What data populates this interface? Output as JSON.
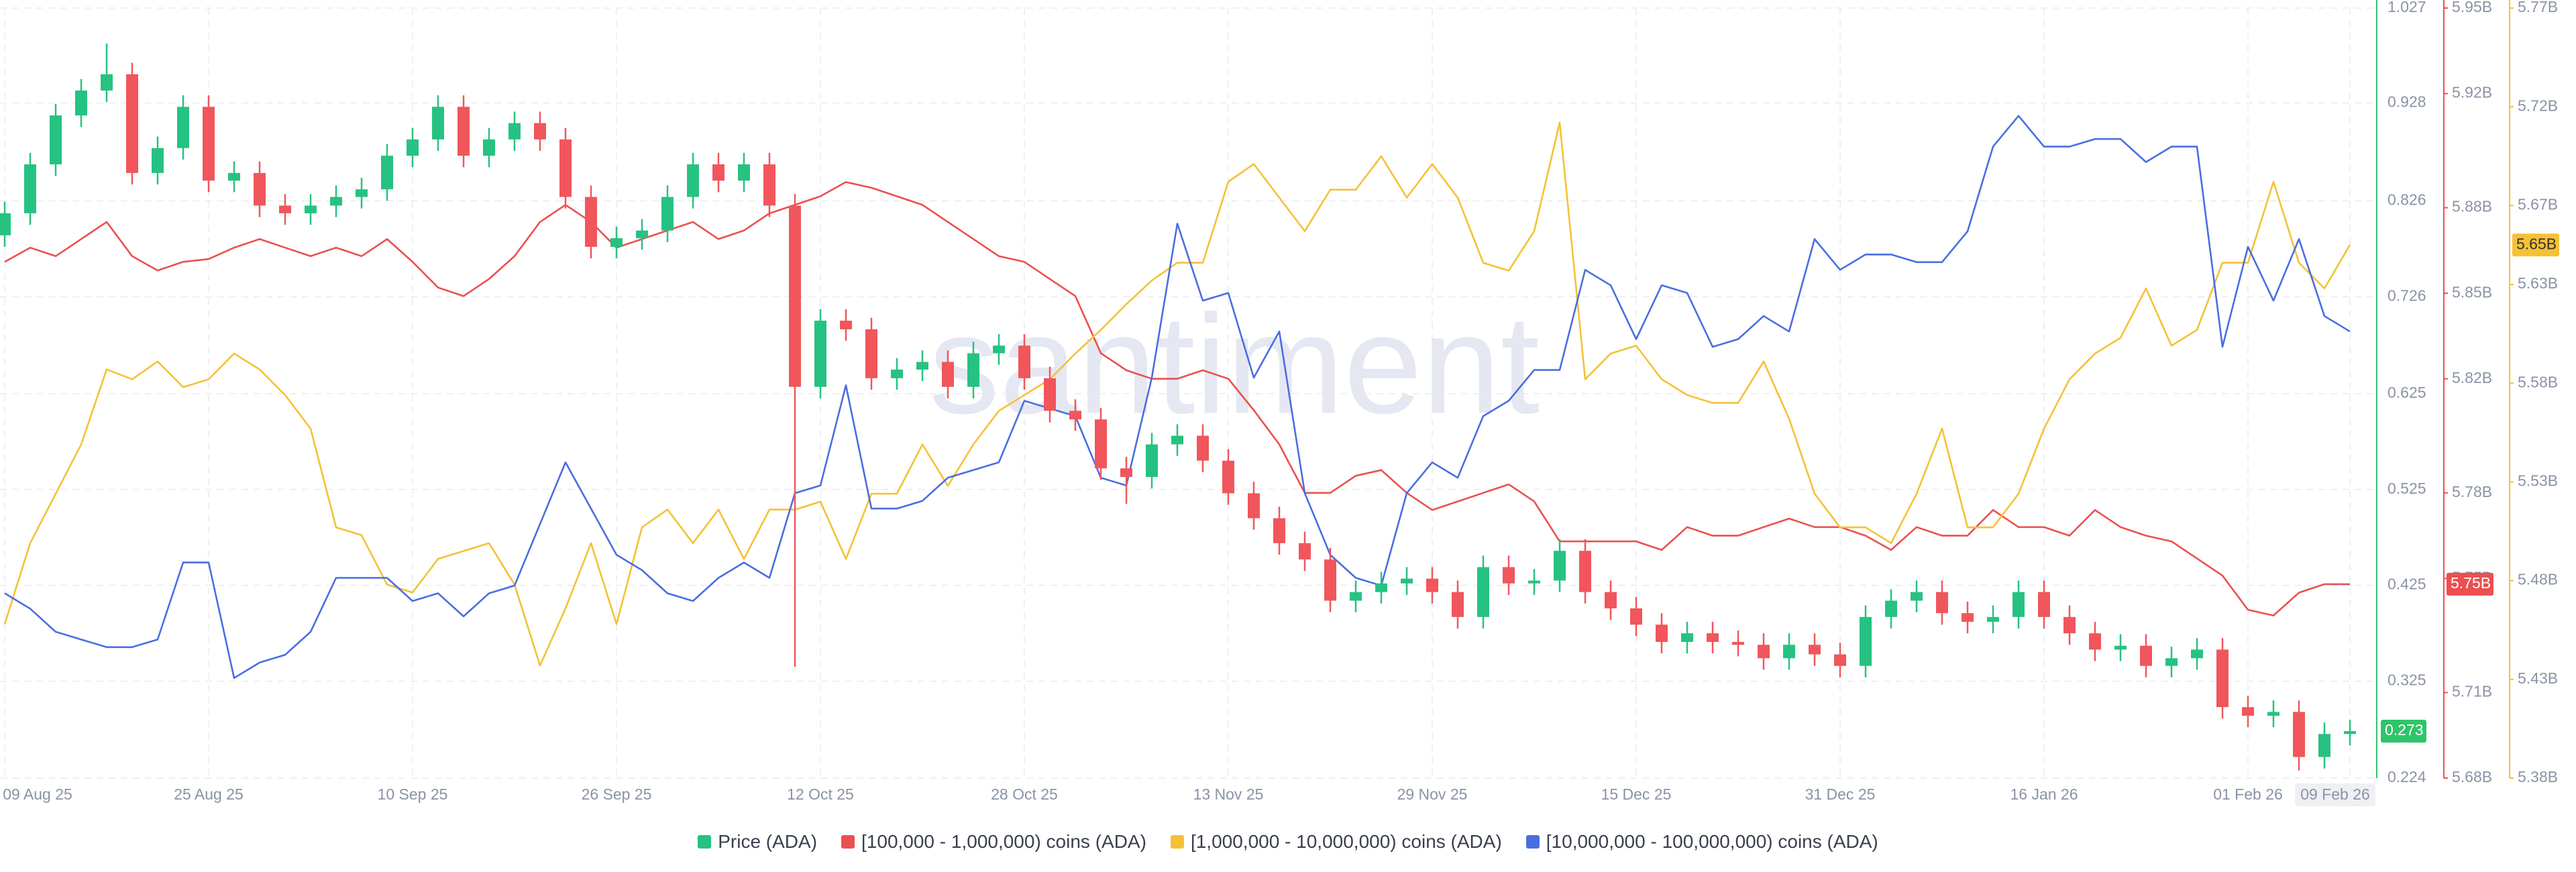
{
  "chart_data": {
    "type": "candlestick",
    "watermark": "santiment",
    "grid": true,
    "categories": [
      "09 Aug 25",
      null,
      null,
      null,
      null,
      null,
      null,
      null,
      "25 Aug 25",
      null,
      null,
      null,
      null,
      null,
      null,
      null,
      "10 Sep 25",
      null,
      null,
      null,
      null,
      null,
      null,
      null,
      "26 Sep 25",
      null,
      null,
      null,
      null,
      null,
      null,
      null,
      "12 Oct 25",
      null,
      null,
      null,
      null,
      null,
      null,
      null,
      "28 Oct 25",
      null,
      null,
      null,
      null,
      null,
      null,
      null,
      "13 Nov 25",
      null,
      null,
      null,
      null,
      null,
      null,
      null,
      "29 Nov 25",
      null,
      null,
      null,
      null,
      null,
      null,
      null,
      "15 Dec 25",
      null,
      null,
      null,
      null,
      null,
      null,
      null,
      "31 Dec 25",
      null,
      null,
      null,
      null,
      null,
      null,
      null,
      "16 Jan 26",
      null,
      null,
      null,
      null,
      null,
      null,
      null,
      "01 Feb 26",
      null,
      null,
      null,
      "09 Feb 26"
    ],
    "ylim": [
      0.224,
      1.027
    ],
    "yticks": [
      0.224,
      0.325,
      0.425,
      0.525,
      0.625,
      0.726,
      0.826,
      0.928,
      1.027
    ],
    "y2lim": [
      5.68,
      5.95
    ],
    "y2ticks": [
      {
        "value": 5.68,
        "label": "5.68B"
      },
      {
        "value": 5.71,
        "label": "5.71B"
      },
      {
        "value": 5.75,
        "label": "5.75B"
      },
      {
        "value": 5.78,
        "label": "5.78B"
      },
      {
        "value": 5.82,
        "label": "5.82B"
      },
      {
        "value": 5.85,
        "label": "5.85B"
      },
      {
        "value": 5.88,
        "label": "5.88B"
      },
      {
        "value": 5.92,
        "label": "5.92B"
      },
      {
        "value": 5.95,
        "label": "5.95B"
      }
    ],
    "y3lim": [
      5.38,
      5.77
    ],
    "y3ticks": [
      {
        "value": 5.38,
        "label": "5.38B"
      },
      {
        "value": 5.43,
        "label": "5.43B"
      },
      {
        "value": 5.48,
        "label": "5.48B"
      },
      {
        "value": 5.53,
        "label": "5.53B"
      },
      {
        "value": 5.58,
        "label": "5.58B"
      },
      {
        "value": 5.63,
        "label": "5.63B"
      },
      {
        "value": 5.67,
        "label": "5.67B"
      },
      {
        "value": 5.72,
        "label": "5.72B"
      },
      {
        "value": 5.77,
        "label": "5.77B"
      }
    ],
    "y4lim": [
      0,
      1
    ],
    "series": [
      {
        "name": "Price (ADA)",
        "type": "candlestick",
        "color": "#26c281",
        "up_color": "#26c281",
        "down_color": "#f0565b",
        "axis_color": "#2fc46a",
        "open": [
          0.79,
          0.813,
          0.864,
          0.915,
          0.941,
          0.958,
          0.855,
          0.881,
          0.924,
          0.847,
          0.855,
          0.821,
          0.813,
          0.821,
          0.83,
          0.838,
          0.873,
          0.89,
          0.924,
          0.873,
          0.89,
          0.907,
          0.89,
          0.83,
          0.778,
          0.787,
          0.795,
          0.83,
          0.864,
          0.847,
          0.864,
          0.821,
          0.632,
          0.701,
          0.692,
          0.641,
          0.65,
          0.658,
          0.632,
          0.667,
          0.675,
          0.641,
          0.607,
          0.598,
          0.547,
          0.538,
          0.572,
          0.581,
          0.555,
          0.521,
          0.495,
          0.469,
          0.452,
          0.409,
          0.418,
          0.427,
          0.432,
          0.418,
          0.392,
          0.444,
          0.427,
          0.43,
          0.461,
          0.418,
          0.401,
          0.384,
          0.366,
          0.375,
          0.366,
          0.363,
          0.349,
          0.363,
          0.353,
          0.341,
          0.392,
          0.409,
          0.418,
          0.396,
          0.387,
          0.392,
          0.418,
          0.392,
          0.375,
          0.358,
          0.362,
          0.341,
          0.349,
          0.358,
          0.298,
          0.289,
          0.293,
          0.246,
          0.27
        ],
        "high": [
          0.825,
          0.876,
          0.927,
          0.953,
          0.99,
          0.97,
          0.893,
          0.936,
          0.936,
          0.867,
          0.867,
          0.833,
          0.833,
          0.842,
          0.85,
          0.885,
          0.902,
          0.936,
          0.936,
          0.902,
          0.919,
          0.919,
          0.902,
          0.842,
          0.799,
          0.807,
          0.842,
          0.876,
          0.876,
          0.876,
          0.876,
          0.833,
          0.713,
          0.713,
          0.704,
          0.662,
          0.67,
          0.67,
          0.679,
          0.687,
          0.687,
          0.653,
          0.619,
          0.61,
          0.559,
          0.584,
          0.593,
          0.593,
          0.567,
          0.533,
          0.507,
          0.481,
          0.464,
          0.43,
          0.439,
          0.444,
          0.444,
          0.43,
          0.456,
          0.456,
          0.442,
          0.473,
          0.473,
          0.43,
          0.413,
          0.396,
          0.387,
          0.387,
          0.378,
          0.375,
          0.375,
          0.375,
          0.365,
          0.404,
          0.421,
          0.43,
          0.43,
          0.408,
          0.404,
          0.43,
          0.43,
          0.404,
          0.387,
          0.374,
          0.374,
          0.361,
          0.37,
          0.37,
          0.31,
          0.305,
          0.305,
          0.282,
          0.285
        ],
        "low": [
          0.778,
          0.801,
          0.852,
          0.903,
          0.929,
          0.843,
          0.843,
          0.869,
          0.835,
          0.835,
          0.809,
          0.801,
          0.801,
          0.809,
          0.818,
          0.826,
          0.861,
          0.878,
          0.861,
          0.861,
          0.878,
          0.878,
          0.818,
          0.766,
          0.766,
          0.775,
          0.783,
          0.818,
          0.835,
          0.835,
          0.809,
          0.34,
          0.62,
          0.68,
          0.629,
          0.629,
          0.638,
          0.62,
          0.62,
          0.655,
          0.629,
          0.595,
          0.586,
          0.535,
          0.51,
          0.526,
          0.56,
          0.543,
          0.509,
          0.483,
          0.457,
          0.44,
          0.397,
          0.397,
          0.406,
          0.415,
          0.406,
          0.38,
          0.38,
          0.415,
          0.415,
          0.418,
          0.406,
          0.389,
          0.372,
          0.354,
          0.354,
          0.354,
          0.351,
          0.337,
          0.337,
          0.341,
          0.329,
          0.329,
          0.38,
          0.397,
          0.384,
          0.375,
          0.375,
          0.38,
          0.38,
          0.363,
          0.346,
          0.346,
          0.329,
          0.329,
          0.337,
          0.286,
          0.277,
          0.277,
          0.232,
          0.234,
          0.258
        ],
        "close": [
          0.813,
          0.864,
          0.915,
          0.941,
          0.958,
          0.855,
          0.881,
          0.924,
          0.847,
          0.855,
          0.821,
          0.813,
          0.821,
          0.83,
          0.838,
          0.873,
          0.89,
          0.924,
          0.873,
          0.89,
          0.907,
          0.89,
          0.83,
          0.778,
          0.787,
          0.795,
          0.83,
          0.864,
          0.847,
          0.864,
          0.821,
          0.632,
          0.701,
          0.692,
          0.641,
          0.65,
          0.658,
          0.632,
          0.667,
          0.675,
          0.641,
          0.607,
          0.598,
          0.547,
          0.538,
          0.572,
          0.581,
          0.555,
          0.521,
          0.495,
          0.469,
          0.452,
          0.409,
          0.418,
          0.427,
          0.432,
          0.418,
          0.392,
          0.444,
          0.427,
          0.43,
          0.461,
          0.418,
          0.401,
          0.384,
          0.366,
          0.375,
          0.366,
          0.363,
          0.349,
          0.363,
          0.353,
          0.341,
          0.392,
          0.409,
          0.418,
          0.396,
          0.387,
          0.392,
          0.418,
          0.392,
          0.375,
          0.358,
          0.362,
          0.341,
          0.349,
          0.358,
          0.298,
          0.289,
          0.293,
          0.246,
          0.27,
          0.273
        ]
      },
      {
        "name": "[100,000  - 1,000,000) coins (ADA)",
        "type": "line",
        "axis": "y2",
        "color": "#ec4f4f",
        "last_value_label": "5.75B",
        "values": [
          5.861,
          5.866,
          5.863,
          5.869,
          5.875,
          5.863,
          5.858,
          5.861,
          5.862,
          5.866,
          5.869,
          5.866,
          5.863,
          5.866,
          5.863,
          5.869,
          5.861,
          5.852,
          5.849,
          5.855,
          5.863,
          5.875,
          5.881,
          5.875,
          5.866,
          5.869,
          5.872,
          5.875,
          5.869,
          5.872,
          5.878,
          5.881,
          5.884,
          5.889,
          5.887,
          5.884,
          5.881,
          5.875,
          5.869,
          5.863,
          5.861,
          5.855,
          5.849,
          5.829,
          5.823,
          5.82,
          5.82,
          5.823,
          5.82,
          5.809,
          5.797,
          5.78,
          5.78,
          5.786,
          5.788,
          5.78,
          5.774,
          5.777,
          5.78,
          5.783,
          5.777,
          5.763,
          5.763,
          5.763,
          5.763,
          5.76,
          5.768,
          5.765,
          5.765,
          5.768,
          5.771,
          5.768,
          5.768,
          5.765,
          5.76,
          5.768,
          5.765,
          5.765,
          5.774,
          5.768,
          5.768,
          5.765,
          5.774,
          5.768,
          5.765,
          5.763,
          5.757,
          5.751,
          5.739,
          5.737,
          5.745,
          5.748,
          5.748
        ]
      },
      {
        "name": "[1,000,000 - 10,000,000) coins (ADA)",
        "type": "line",
        "axis": "y3",
        "color": "#f5c136",
        "last_value_label": "5.65B",
        "values": [
          5.458,
          5.499,
          5.524,
          5.549,
          5.587,
          5.582,
          5.591,
          5.578,
          5.582,
          5.595,
          5.587,
          5.574,
          5.557,
          5.507,
          5.503,
          5.478,
          5.474,
          5.491,
          5.495,
          5.499,
          5.478,
          5.437,
          5.466,
          5.499,
          5.458,
          5.507,
          5.516,
          5.499,
          5.516,
          5.491,
          5.516,
          5.516,
          5.52,
          5.491,
          5.524,
          5.524,
          5.549,
          5.528,
          5.549,
          5.566,
          5.574,
          5.582,
          5.595,
          5.607,
          5.62,
          5.632,
          5.641,
          5.641,
          5.682,
          5.691,
          5.674,
          5.657,
          5.678,
          5.678,
          5.695,
          5.674,
          5.691,
          5.674,
          5.641,
          5.637,
          5.657,
          5.712,
          5.582,
          5.595,
          5.599,
          5.582,
          5.574,
          5.57,
          5.57,
          5.591,
          5.562,
          5.524,
          5.507,
          5.507,
          5.499,
          5.524,
          5.557,
          5.507,
          5.507,
          5.524,
          5.557,
          5.582,
          5.595,
          5.603,
          5.628,
          5.599,
          5.607,
          5.641,
          5.641,
          5.682,
          5.641,
          5.628,
          5.65
        ]
      },
      {
        "name": "[10,000,000 - 100,000,000) coins (ADA)",
        "type": "line",
        "axis": "y4",
        "color": "#4a6ee0",
        "values": [
          0.24,
          0.22,
          0.19,
          0.18,
          0.17,
          0.17,
          0.18,
          0.28,
          0.28,
          0.13,
          0.15,
          0.16,
          0.19,
          0.26,
          0.26,
          0.26,
          0.23,
          0.24,
          0.21,
          0.24,
          0.25,
          0.33,
          0.41,
          0.35,
          0.29,
          0.27,
          0.24,
          0.23,
          0.26,
          0.28,
          0.26,
          0.37,
          0.38,
          0.51,
          0.35,
          0.35,
          0.36,
          0.39,
          0.4,
          0.41,
          0.49,
          0.48,
          0.47,
          0.39,
          0.38,
          0.52,
          0.72,
          0.62,
          0.63,
          0.52,
          0.58,
          0.37,
          0.29,
          0.26,
          0.25,
          0.37,
          0.41,
          0.39,
          0.47,
          0.49,
          0.53,
          0.53,
          0.66,
          0.64,
          0.57,
          0.64,
          0.63,
          0.56,
          0.57,
          0.6,
          0.58,
          0.7,
          0.66,
          0.68,
          0.68,
          0.67,
          0.67,
          0.71,
          0.82,
          0.86,
          0.82,
          0.82,
          0.83,
          0.83,
          0.8,
          0.82,
          0.82,
          0.56,
          0.69,
          0.62,
          0.7,
          0.6,
          0.58
        ]
      }
    ]
  }
}
